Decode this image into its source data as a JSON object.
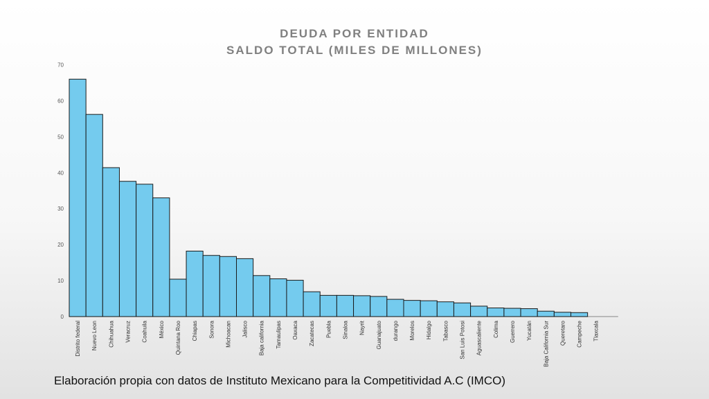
{
  "slide": {
    "caption": "Elaboración propia con datos de Instituto Mexicano para la Competitividad A.C (IMCO)"
  },
  "colors": {
    "bar_fill": "#74cbee",
    "bar_stroke": "#1a1a1a",
    "title": "#808080",
    "axis": "#9a9a9a"
  },
  "chart_data": {
    "type": "bar",
    "title": "DEUDA POR ENTIDAD",
    "subtitle": "SALDO TOTAL (MILES DE MILLONES)",
    "xlabel": "",
    "ylabel": "",
    "ylim": [
      0,
      70
    ],
    "yticks": [
      0,
      10,
      20,
      30,
      40,
      50,
      60,
      70
    ],
    "grid": false,
    "categories": [
      "Distrito federal",
      "Nuevo Leon",
      "Chihuahua",
      "Veracruz",
      "Coahuila",
      "México",
      "Quintana Roo",
      "Chiapas",
      "Sonora",
      "Michoacan",
      "Jalisco",
      "Baja california",
      "Tamaulipas",
      "Oaxaca",
      "Zacatecas",
      "Puebla",
      "Sinaloa",
      "Nayrit",
      "Guanajuato",
      "durango",
      "Morelos",
      "Hidalgo",
      "Tabasco",
      "San Luis Potosi",
      "Aguascaliente",
      "Colima",
      "Guerrero",
      "Yucatán",
      "Baja California Sur",
      "Queretaro",
      "Campeche",
      "Tlaxcala"
    ],
    "values": [
      66,
      56.2,
      41.4,
      37.6,
      36.8,
      33,
      10.4,
      18.2,
      17,
      16.7,
      16.1,
      11.4,
      10.5,
      10.1,
      6.9,
      5.9,
      5.9,
      5.8,
      5.6,
      4.8,
      4.5,
      4.4,
      4.1,
      3.8,
      2.9,
      2.4,
      2.3,
      2.2,
      1.5,
      1.2,
      1.1,
      0
    ]
  }
}
